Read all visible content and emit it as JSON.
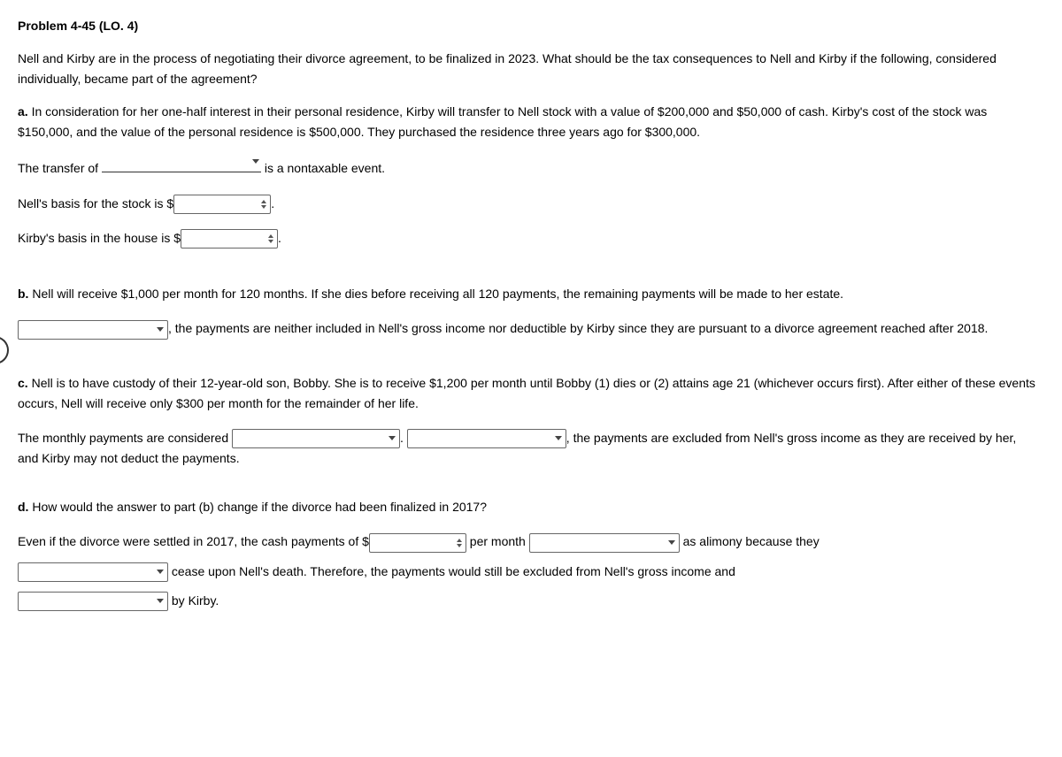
{
  "title": "Problem 4-45 (LO. 4)",
  "intro": "Nell and Kirby are in the process of negotiating their divorce agreement, to be finalized in 2023. What should be the tax consequences to Nell and Kirby if the following, considered individually, became part of the agreement?",
  "parts": {
    "a": {
      "label": "a.",
      "text": "In consideration for her one-half interest in their personal residence, Kirby will transfer to Nell stock with a value of $200,000 and $50,000 of cash. Kirby's cost of the stock was $150,000, and the value of the personal residence is $500,000. They purchased the residence three years ago for $300,000.",
      "line1_pre": "The transfer of",
      "line1_post": "is a nontaxable event.",
      "line2_pre": "Nell's basis for the stock is $",
      "line2_post": ".",
      "line3_pre": "Kirby's basis in the house is $",
      "line3_post": "."
    },
    "b": {
      "label": "b.",
      "text": "Nell will receive $1,000 per month for 120 months. If she dies before receiving all 120 payments, the remaining payments will be made to her estate.",
      "line1_post": ", the payments are neither included in Nell's gross income nor deductible by Kirby since they are pursuant to a divorce agreement reached after 2018."
    },
    "c": {
      "label": "c.",
      "text": "Nell is to have custody of their 12-year-old son, Bobby. She is to receive $1,200 per month until Bobby (1) dies or (2) attains age 21 (whichever occurs first). After either of these events occurs, Nell will receive only $300 per month for the remainder of her life.",
      "line1_pre": "The monthly payments are considered",
      "line1_mid": ".",
      "line1_post": ", the payments are excluded from Nell's gross income as they are received by her, and Kirby may not deduct the payments."
    },
    "d": {
      "label": "d.",
      "text": "How would the answer to part (b) change if the divorce had been finalized in 2017?",
      "line1_pre": "Even if the divorce were settled in 2017, the cash payments of $",
      "line1_mid1": "per month",
      "line1_mid2": "as alimony because they",
      "line2_post": "cease upon Nell's death. Therefore, the payments would still be excluded from Nell's gross income and",
      "line3_post": "by Kirby."
    }
  },
  "widths": {
    "dd_med": 180,
    "dd_short": 170,
    "dd_c1": 190,
    "dd_c2": 180,
    "dd_d_mid": 170,
    "dd_d_line2": 170,
    "dd_d_line3": 170,
    "num": 110,
    "num_d": 110
  }
}
